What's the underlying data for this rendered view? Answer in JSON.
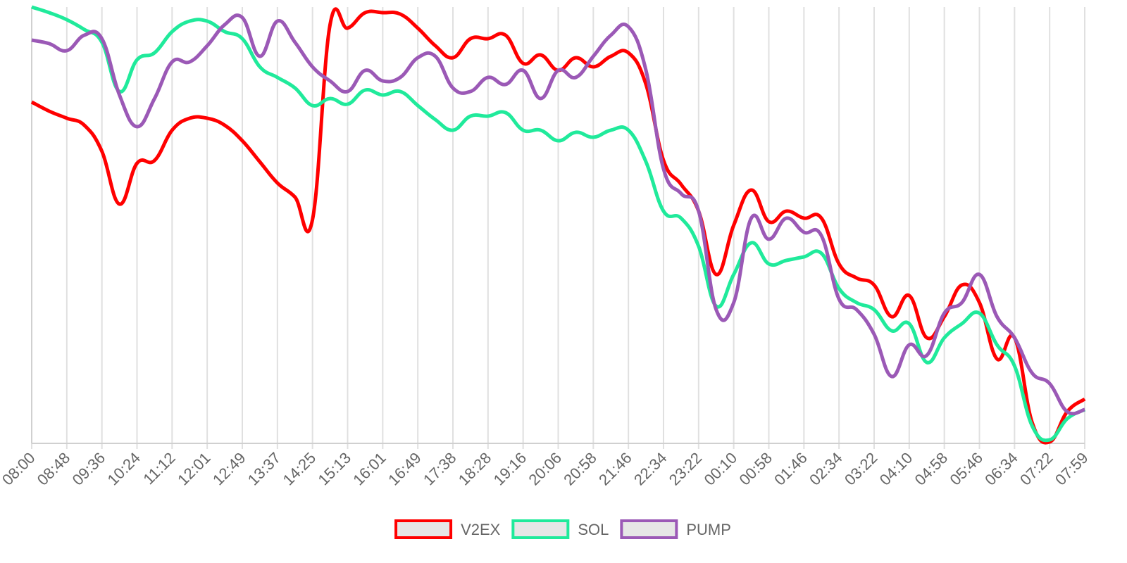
{
  "chart_data": {
    "type": "line",
    "categories": [
      "08:00",
      null,
      "08:48",
      null,
      "09:36",
      null,
      "10:24",
      null,
      "11:12",
      null,
      "12:01",
      null,
      "12:49",
      null,
      "13:37",
      null,
      "14:25",
      null,
      "15:13",
      null,
      "16:01",
      null,
      "16:49",
      null,
      "17:38",
      null,
      "18:28",
      null,
      "19:16",
      null,
      "20:06",
      null,
      "20:58",
      null,
      "21:46",
      null,
      "22:34",
      null,
      "23:22",
      null,
      "00:10",
      null,
      "00:58",
      null,
      "01:46",
      null,
      "02:34",
      null,
      "03:22",
      null,
      "04:10",
      null,
      "04:58",
      null,
      "05:46",
      null,
      "06:34",
      null,
      "07:22",
      null,
      "07:59"
    ],
    "series": [
      {
        "name": "V2EX",
        "color": "#ff0000",
        "values": [
          485,
          472,
          462,
          452,
          415,
          340,
          398,
          402,
          445,
          462,
          462,
          452,
          430,
          400,
          370,
          350,
          318,
          595,
          590,
          612,
          612,
          610,
          590,
          565,
          548,
          575,
          575,
          580,
          540,
          552,
          530,
          548,
          535,
          550,
          555,
          510,
          402,
          368,
          330,
          240,
          310,
          360,
          315,
          330,
          320,
          320,
          255,
          235,
          225,
          180,
          210,
          150,
          180,
          225,
          200,
          120,
          150,
          30,
          2,
          45,
          63
        ]
      },
      {
        "name": "SOL",
        "color": "#20ea9b",
        "values": [
          620,
          612,
          602,
          588,
          570,
          500,
          545,
          555,
          585,
          600,
          600,
          585,
          575,
          535,
          520,
          505,
          480,
          490,
          482,
          502,
          495,
          500,
          480,
          460,
          445,
          465,
          465,
          470,
          445,
          445,
          430,
          442,
          435,
          445,
          445,
          400,
          330,
          320,
          280,
          195,
          240,
          285,
          255,
          260,
          265,
          270,
          220,
          200,
          190,
          160,
          170,
          115,
          150,
          170,
          185,
          140,
          110,
          25,
          5,
          35,
          48
        ]
      },
      {
        "name": "PUMP",
        "color": "#9b59b6",
        "values": [
          573,
          568,
          558,
          580,
          575,
          495,
          450,
          490,
          542,
          542,
          565,
          595,
          605,
          550,
          600,
          570,
          535,
          515,
          500,
          530,
          515,
          520,
          548,
          550,
          505,
          500,
          520,
          510,
          530,
          490,
          530,
          520,
          550,
          580,
          592,
          530,
          390,
          355,
          330,
          190,
          200,
          320,
          290,
          320,
          300,
          295,
          205,
          190,
          155,
          95,
          140,
          125,
          185,
          200,
          240,
          180,
          150,
          100,
          85,
          45,
          48
        ]
      }
    ],
    "ylim": [
      0,
      620
    ],
    "grid": true,
    "legend": "bottom"
  }
}
